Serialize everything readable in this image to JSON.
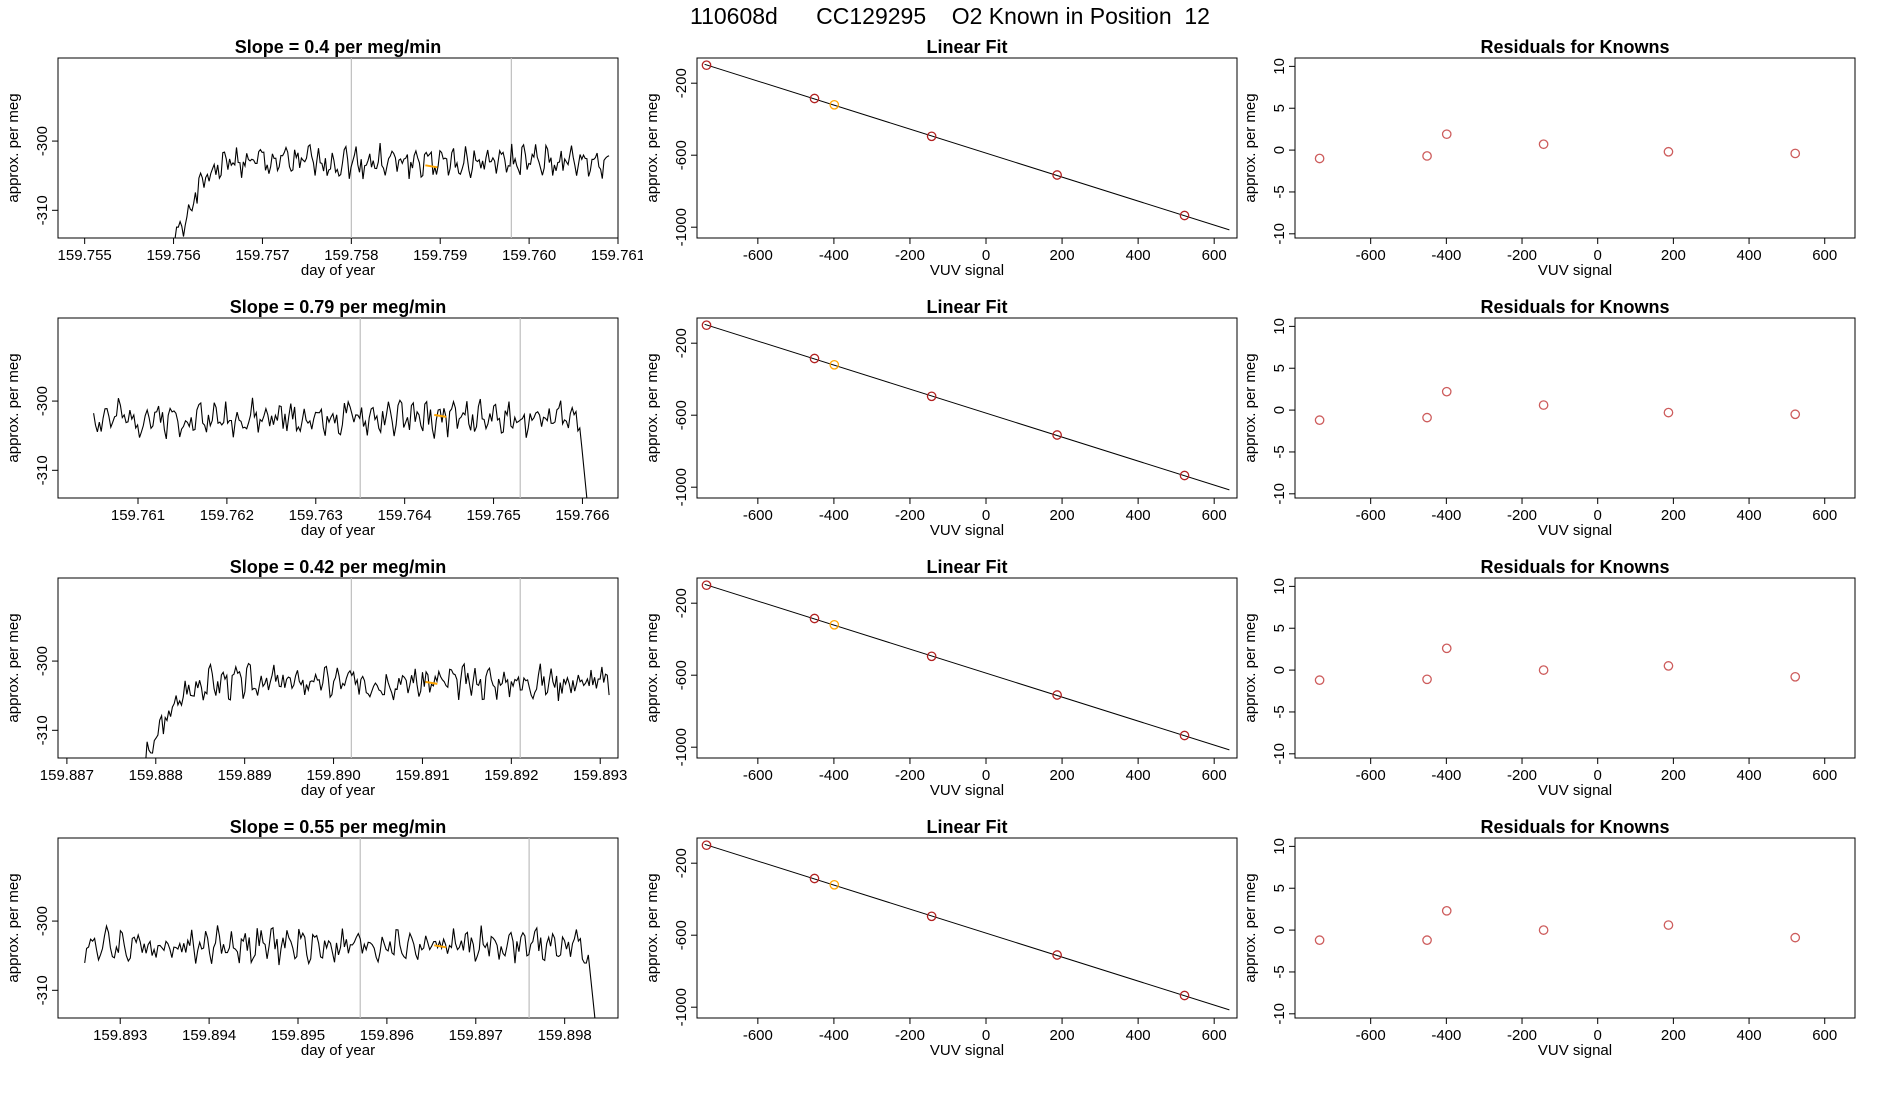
{
  "main_title": "110608d      CC129295    O2 Known in Position  12",
  "colors": {
    "line": "#000000",
    "vertical_marker": "#bebebe",
    "highlight": "#ffa500",
    "residual_point": "#cd5c5c",
    "fit_point": "#b22222"
  },
  "chart_data": [
    {
      "type": "line",
      "panel": "time-1",
      "title": "Slope =  0.4  per meg/min",
      "xlabel": "day of year",
      "ylabel": "approx. per meg",
      "xlim": [
        159.7547,
        159.761
      ],
      "ylim": [
        -314,
        -288
      ],
      "xticks": [
        159.755,
        159.756,
        159.757,
        159.758,
        159.759,
        159.76,
        159.761
      ],
      "xtick_labels": [
        "159.755",
        "159.756",
        "159.757",
        "159.758",
        "159.759",
        "159.760",
        "159.761"
      ],
      "yticks": [
        -300,
        -310
      ],
      "ytick_labels": [
        "-300",
        "-310"
      ],
      "vlines": [
        159.758,
        159.7598
      ],
      "series": [
        {
          "x_start": 159.7559,
          "x_end": 159.7609,
          "rise_from": -320,
          "plateau": -303,
          "noise": 1.5,
          "drop": false,
          "seed": 1
        }
      ],
      "highlight": {
        "x": 159.7589,
        "y": -303.5
      }
    },
    {
      "type": "scatter",
      "panel": "fit-1",
      "title": "Linear Fit",
      "xlabel": "VUV signal",
      "ylabel": "approx. per meg",
      "xlim": [
        -760,
        660
      ],
      "ylim": [
        -1060,
        -60
      ],
      "xticks": [
        -600,
        -400,
        -200,
        0,
        200,
        400,
        600
      ],
      "xtick_labels": [
        "-600",
        "-400",
        "-200",
        "0",
        "200",
        "400",
        "600"
      ],
      "yticks": [
        -200,
        -600,
        -1000
      ],
      "ytick_labels": [
        "-200",
        "-600",
        "-1000"
      ],
      "line": {
        "x": [
          -740,
          640
        ],
        "y": [
          -95,
          -1015
        ]
      },
      "x": [
        -735,
        -451,
        -399,
        -143,
        187,
        522
      ],
      "y": [
        -100,
        -285,
        -320,
        -495,
        -710,
        -935
      ],
      "highlight_index": 2
    },
    {
      "type": "scatter",
      "panel": "resid-1",
      "title": "Residuals for Knowns",
      "xlabel": "VUV signal",
      "ylabel": "approx. per meg",
      "xlim": [
        -800,
        680
      ],
      "ylim": [
        -10.5,
        11
      ],
      "xticks": [
        -600,
        -400,
        -200,
        0,
        200,
        400,
        600
      ],
      "xtick_labels": [
        "-600",
        "-400",
        "-200",
        "0",
        "200",
        "400",
        "600"
      ],
      "yticks": [
        -10,
        -5,
        0,
        5,
        10
      ],
      "ytick_labels": [
        "-10",
        "-5",
        "0",
        "5",
        "10"
      ],
      "x": [
        -735,
        -451,
        -399,
        -143,
        187,
        522
      ],
      "y": [
        -1.0,
        -0.7,
        1.9,
        0.7,
        -0.2,
        -0.4
      ]
    },
    {
      "type": "line",
      "panel": "time-2",
      "title": "Slope =  0.79  per meg/min",
      "xlabel": "day of year",
      "ylabel": "approx. per meg",
      "xlim": [
        159.7601,
        159.7664
      ],
      "ylim": [
        -314,
        -288
      ],
      "xticks": [
        159.761,
        159.762,
        159.763,
        159.764,
        159.765,
        159.766
      ],
      "xtick_labels": [
        "159.761",
        "159.762",
        "159.763",
        "159.764",
        "159.765",
        "159.766"
      ],
      "yticks": [
        -300,
        -310
      ],
      "ytick_labels": [
        "-300",
        "-310"
      ],
      "vlines": [
        159.7635,
        159.7653
      ],
      "series": [
        {
          "x_start": 159.7605,
          "x_end": 159.7661,
          "rise_from": null,
          "plateau": -302.5,
          "noise": 1.6,
          "drop": true,
          "seed": 2
        }
      ],
      "highlight": {
        "x": 159.7644,
        "y": -302
      }
    },
    {
      "type": "scatter",
      "panel": "fit-2",
      "title": "Linear Fit",
      "xlabel": "VUV signal",
      "ylabel": "approx. per meg",
      "xlim": [
        -760,
        660
      ],
      "ylim": [
        -1060,
        -60
      ],
      "xticks": [
        -600,
        -400,
        -200,
        0,
        200,
        400,
        600
      ],
      "xtick_labels": [
        "-600",
        "-400",
        "-200",
        "0",
        "200",
        "400",
        "600"
      ],
      "yticks": [
        -200,
        -600,
        -1000
      ],
      "ytick_labels": [
        "-200",
        "-600",
        "-1000"
      ],
      "line": {
        "x": [
          -740,
          640
        ],
        "y": [
          -95,
          -1015
        ]
      },
      "x": [
        -735,
        -451,
        -399,
        -143,
        187,
        522
      ],
      "y": [
        -100,
        -285,
        -320,
        -495,
        -710,
        -935
      ],
      "highlight_index": 2
    },
    {
      "type": "scatter",
      "panel": "resid-2",
      "title": "Residuals for Knowns",
      "xlabel": "VUV signal",
      "ylabel": "approx. per meg",
      "xlim": [
        -800,
        680
      ],
      "ylim": [
        -10.5,
        11
      ],
      "xticks": [
        -600,
        -400,
        -200,
        0,
        200,
        400,
        600
      ],
      "xtick_labels": [
        "-600",
        "-400",
        "-200",
        "0",
        "200",
        "400",
        "600"
      ],
      "yticks": [
        -10,
        -5,
        0,
        5,
        10
      ],
      "ytick_labels": [
        "-10",
        "-5",
        "0",
        "5",
        "10"
      ],
      "x": [
        -735,
        -451,
        -399,
        -143,
        187,
        522
      ],
      "y": [
        -1.2,
        -0.9,
        2.2,
        0.6,
        -0.3,
        -0.5
      ]
    },
    {
      "type": "line",
      "panel": "time-3",
      "title": "Slope =  0.42  per meg/min",
      "xlabel": "day of year",
      "ylabel": "approx. per meg",
      "xlim": [
        159.8869,
        159.8932
      ],
      "ylim": [
        -314,
        -288
      ],
      "xticks": [
        159.887,
        159.888,
        159.889,
        159.89,
        159.891,
        159.892,
        159.893
      ],
      "xtick_labels": [
        "159.887",
        "159.888",
        "159.889",
        "159.890",
        "159.891",
        "159.892",
        "159.893"
      ],
      "yticks": [
        -300,
        -310
      ],
      "ytick_labels": [
        "-300",
        "-310"
      ],
      "vlines": [
        159.8902,
        159.8921
      ],
      "series": [
        {
          "x_start": 159.8878,
          "x_end": 159.8931,
          "rise_from": -318,
          "plateau": -303,
          "noise": 1.5,
          "drop": false,
          "seed": 3
        }
      ],
      "highlight": {
        "x": 159.8911,
        "y": -303
      }
    },
    {
      "type": "scatter",
      "panel": "fit-3",
      "title": "Linear Fit",
      "xlabel": "VUV signal",
      "ylabel": "approx. per meg",
      "xlim": [
        -760,
        660
      ],
      "ylim": [
        -1060,
        -60
      ],
      "xticks": [
        -600,
        -400,
        -200,
        0,
        200,
        400,
        600
      ],
      "xtick_labels": [
        "-600",
        "-400",
        "-200",
        "0",
        "200",
        "400",
        "600"
      ],
      "yticks": [
        -200,
        -600,
        -1000
      ],
      "ytick_labels": [
        "-200",
        "-600",
        "-1000"
      ],
      "line": {
        "x": [
          -740,
          640
        ],
        "y": [
          -95,
          -1015
        ]
      },
      "x": [
        -735,
        -451,
        -399,
        -143,
        187,
        522
      ],
      "y": [
        -100,
        -285,
        -320,
        -495,
        -710,
        -935
      ],
      "highlight_index": 2
    },
    {
      "type": "scatter",
      "panel": "resid-3",
      "title": "Residuals for Knowns",
      "xlabel": "VUV signal",
      "ylabel": "approx. per meg",
      "xlim": [
        -800,
        680
      ],
      "ylim": [
        -10.5,
        11
      ],
      "xticks": [
        -600,
        -400,
        -200,
        0,
        200,
        400,
        600
      ],
      "xtick_labels": [
        "-600",
        "-400",
        "-200",
        "0",
        "200",
        "400",
        "600"
      ],
      "yticks": [
        -10,
        -5,
        0,
        5,
        10
      ],
      "ytick_labels": [
        "-10",
        "-5",
        "0",
        "5",
        "10"
      ],
      "x": [
        -735,
        -451,
        -399,
        -143,
        187,
        522
      ],
      "y": [
        -1.2,
        -1.1,
        2.6,
        0.0,
        0.5,
        -0.8
      ]
    },
    {
      "type": "line",
      "panel": "time-4",
      "title": "Slope =  0.55  per meg/min",
      "xlabel": "day of year",
      "ylabel": "approx. per meg",
      "xlim": [
        159.8923,
        159.8986
      ],
      "ylim": [
        -314,
        -288
      ],
      "xticks": [
        159.893,
        159.894,
        159.895,
        159.896,
        159.897,
        159.898
      ],
      "xtick_labels": [
        "159.893",
        "159.894",
        "159.895",
        "159.896",
        "159.897",
        "159.898"
      ],
      "yticks": [
        -300,
        -310
      ],
      "ytick_labels": [
        "-300",
        "-310"
      ],
      "vlines": [
        159.8957,
        159.8976
      ],
      "series": [
        {
          "x_start": 159.8926,
          "x_end": 159.8984,
          "rise_from": null,
          "plateau": -303.5,
          "noise": 1.6,
          "drop": true,
          "seed": 4
        }
      ],
      "highlight": {
        "x": 159.8966,
        "y": -303.5
      }
    },
    {
      "type": "scatter",
      "panel": "fit-4",
      "title": "Linear Fit",
      "xlabel": "VUV signal",
      "ylabel": "approx. per meg",
      "xlim": [
        -760,
        660
      ],
      "ylim": [
        -1060,
        -60
      ],
      "xticks": [
        -600,
        -400,
        -200,
        0,
        200,
        400,
        600
      ],
      "xtick_labels": [
        "-600",
        "-400",
        "-200",
        "0",
        "200",
        "400",
        "600"
      ],
      "yticks": [
        -200,
        -600,
        -1000
      ],
      "ytick_labels": [
        "-200",
        "-600",
        "-1000"
      ],
      "line": {
        "x": [
          -740,
          640
        ],
        "y": [
          -95,
          -1015
        ]
      },
      "x": [
        -735,
        -451,
        -399,
        -143,
        187,
        522
      ],
      "y": [
        -100,
        -285,
        -320,
        -495,
        -710,
        -935
      ],
      "highlight_index": 2
    },
    {
      "type": "scatter",
      "panel": "resid-4",
      "title": "Residuals for Knowns",
      "xlabel": "VUV signal",
      "ylabel": "approx. per meg",
      "xlim": [
        -800,
        680
      ],
      "ylim": [
        -10.5,
        11
      ],
      "xticks": [
        -600,
        -400,
        -200,
        0,
        200,
        400,
        600
      ],
      "xtick_labels": [
        "-600",
        "-400",
        "-200",
        "0",
        "200",
        "400",
        "600"
      ],
      "yticks": [
        -10,
        -5,
        0,
        5,
        10
      ],
      "ytick_labels": [
        "-10",
        "-5",
        "0",
        "5",
        "10"
      ],
      "x": [
        -735,
        -451,
        -399,
        -143,
        187,
        522
      ],
      "y": [
        -1.2,
        -1.2,
        2.3,
        0.0,
        0.6,
        -0.9
      ]
    }
  ]
}
